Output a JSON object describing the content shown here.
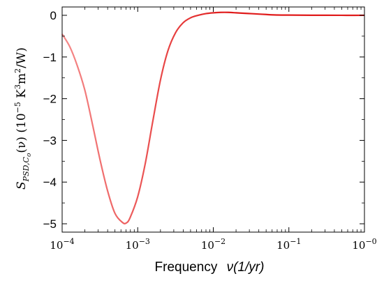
{
  "chart_data": {
    "type": "line",
    "title": "",
    "xlabel": {
      "prefix": "Frequency",
      "symbol": "ν(1/yr)"
    },
    "ylabel": {
      "S": "S",
      "S_sub": "PSD,C",
      "S_subsub": "o",
      "func": "(ν) (10",
      "exp": "−5",
      "units": " K",
      "units_exp1": "3",
      "units_m": "m",
      "units_exp2": "2",
      "units_end": "/W)"
    },
    "x_scale": "log",
    "xlim": [
      0.0001,
      1
    ],
    "ylim": [
      -5.2,
      0.2
    ],
    "x_ticks": [
      {
        "value": 0.0001,
        "base": "10",
        "exp": "−4"
      },
      {
        "value": 0.001,
        "base": "10",
        "exp": "−3"
      },
      {
        "value": 0.01,
        "base": "10",
        "exp": "−2"
      },
      {
        "value": 0.1,
        "base": "10",
        "exp": "−1"
      },
      {
        "value": 1,
        "base": "10",
        "exp": "−0"
      }
    ],
    "y_ticks": [
      {
        "value": 0,
        "label": "0"
      },
      {
        "value": -1,
        "label": "−1"
      },
      {
        "value": -2,
        "label": "−2"
      },
      {
        "value": -3,
        "label": "−3"
      },
      {
        "value": -4,
        "label": "−4"
      },
      {
        "value": -5,
        "label": "−5"
      }
    ],
    "grid": false,
    "legend": "none",
    "series": [
      {
        "color_light": "#f58a8a",
        "color_dark": "#e01b1b",
        "x": [
          0.0001,
          0.000126,
          0.000158,
          0.0002,
          0.000251,
          0.000316,
          0.000398,
          0.0005,
          0.00063,
          0.000708,
          0.000794,
          0.001,
          0.00126,
          0.00158,
          0.002,
          0.00251,
          0.00316,
          0.00398,
          0.005,
          0.0063,
          0.00794,
          0.01,
          0.0126,
          0.0158,
          0.02,
          0.0251,
          0.0316,
          0.0398,
          0.05,
          0.0631,
          0.1,
          0.2,
          0.5,
          1
        ],
        "y": [
          -0.45,
          -0.75,
          -1.2,
          -1.8,
          -2.6,
          -3.45,
          -4.2,
          -4.75,
          -4.97,
          -4.98,
          -4.85,
          -4.35,
          -3.55,
          -2.55,
          -1.55,
          -0.85,
          -0.42,
          -0.18,
          -0.06,
          0.0,
          0.04,
          0.06,
          0.07,
          0.07,
          0.06,
          0.05,
          0.04,
          0.03,
          0.02,
          0.01,
          0.005,
          0.002,
          0.0,
          0.0
        ]
      }
    ]
  }
}
